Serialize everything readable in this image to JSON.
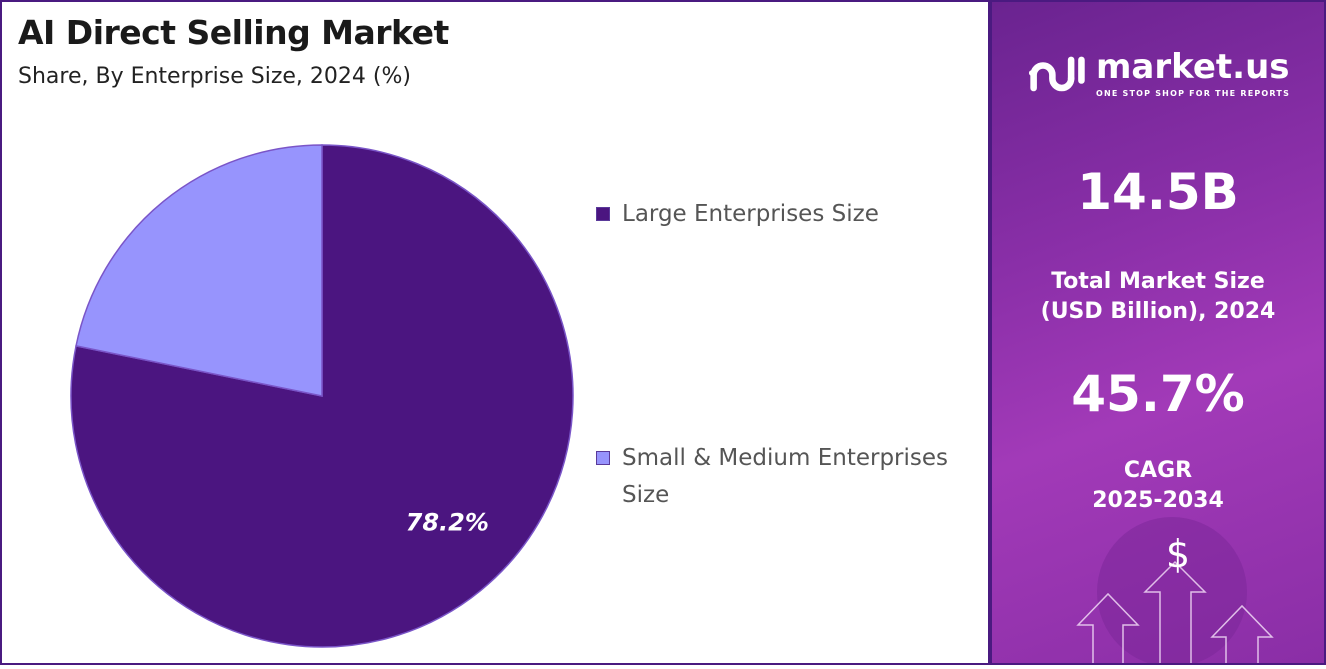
{
  "chart_data": {
    "type": "pie",
    "title": "AI Direct Selling Market",
    "subtitle": "Share, By Enterprise Size, 2024 (%)",
    "slices": [
      {
        "label": "Large Enterprises Size",
        "value": 78.2,
        "color": "#4b1580",
        "data_label": "78.2%"
      },
      {
        "label": "Small & Medium Enterprises Size",
        "value": 21.8,
        "color": "#9794fd",
        "data_label": ""
      }
    ],
    "legend_position": "right"
  },
  "sidebar": {
    "brand": "market.us",
    "tagline": "ONE STOP SHOP FOR THE REPORTS",
    "market_size": "14.5B",
    "market_size_label_line1": "Total Market Size",
    "market_size_label_line2": "(USD Billion), 2024",
    "cagr": "45.7%",
    "cagr_label_line1": "CAGR",
    "cagr_label_line2": "2025-2034",
    "dollar_symbol": "$"
  }
}
